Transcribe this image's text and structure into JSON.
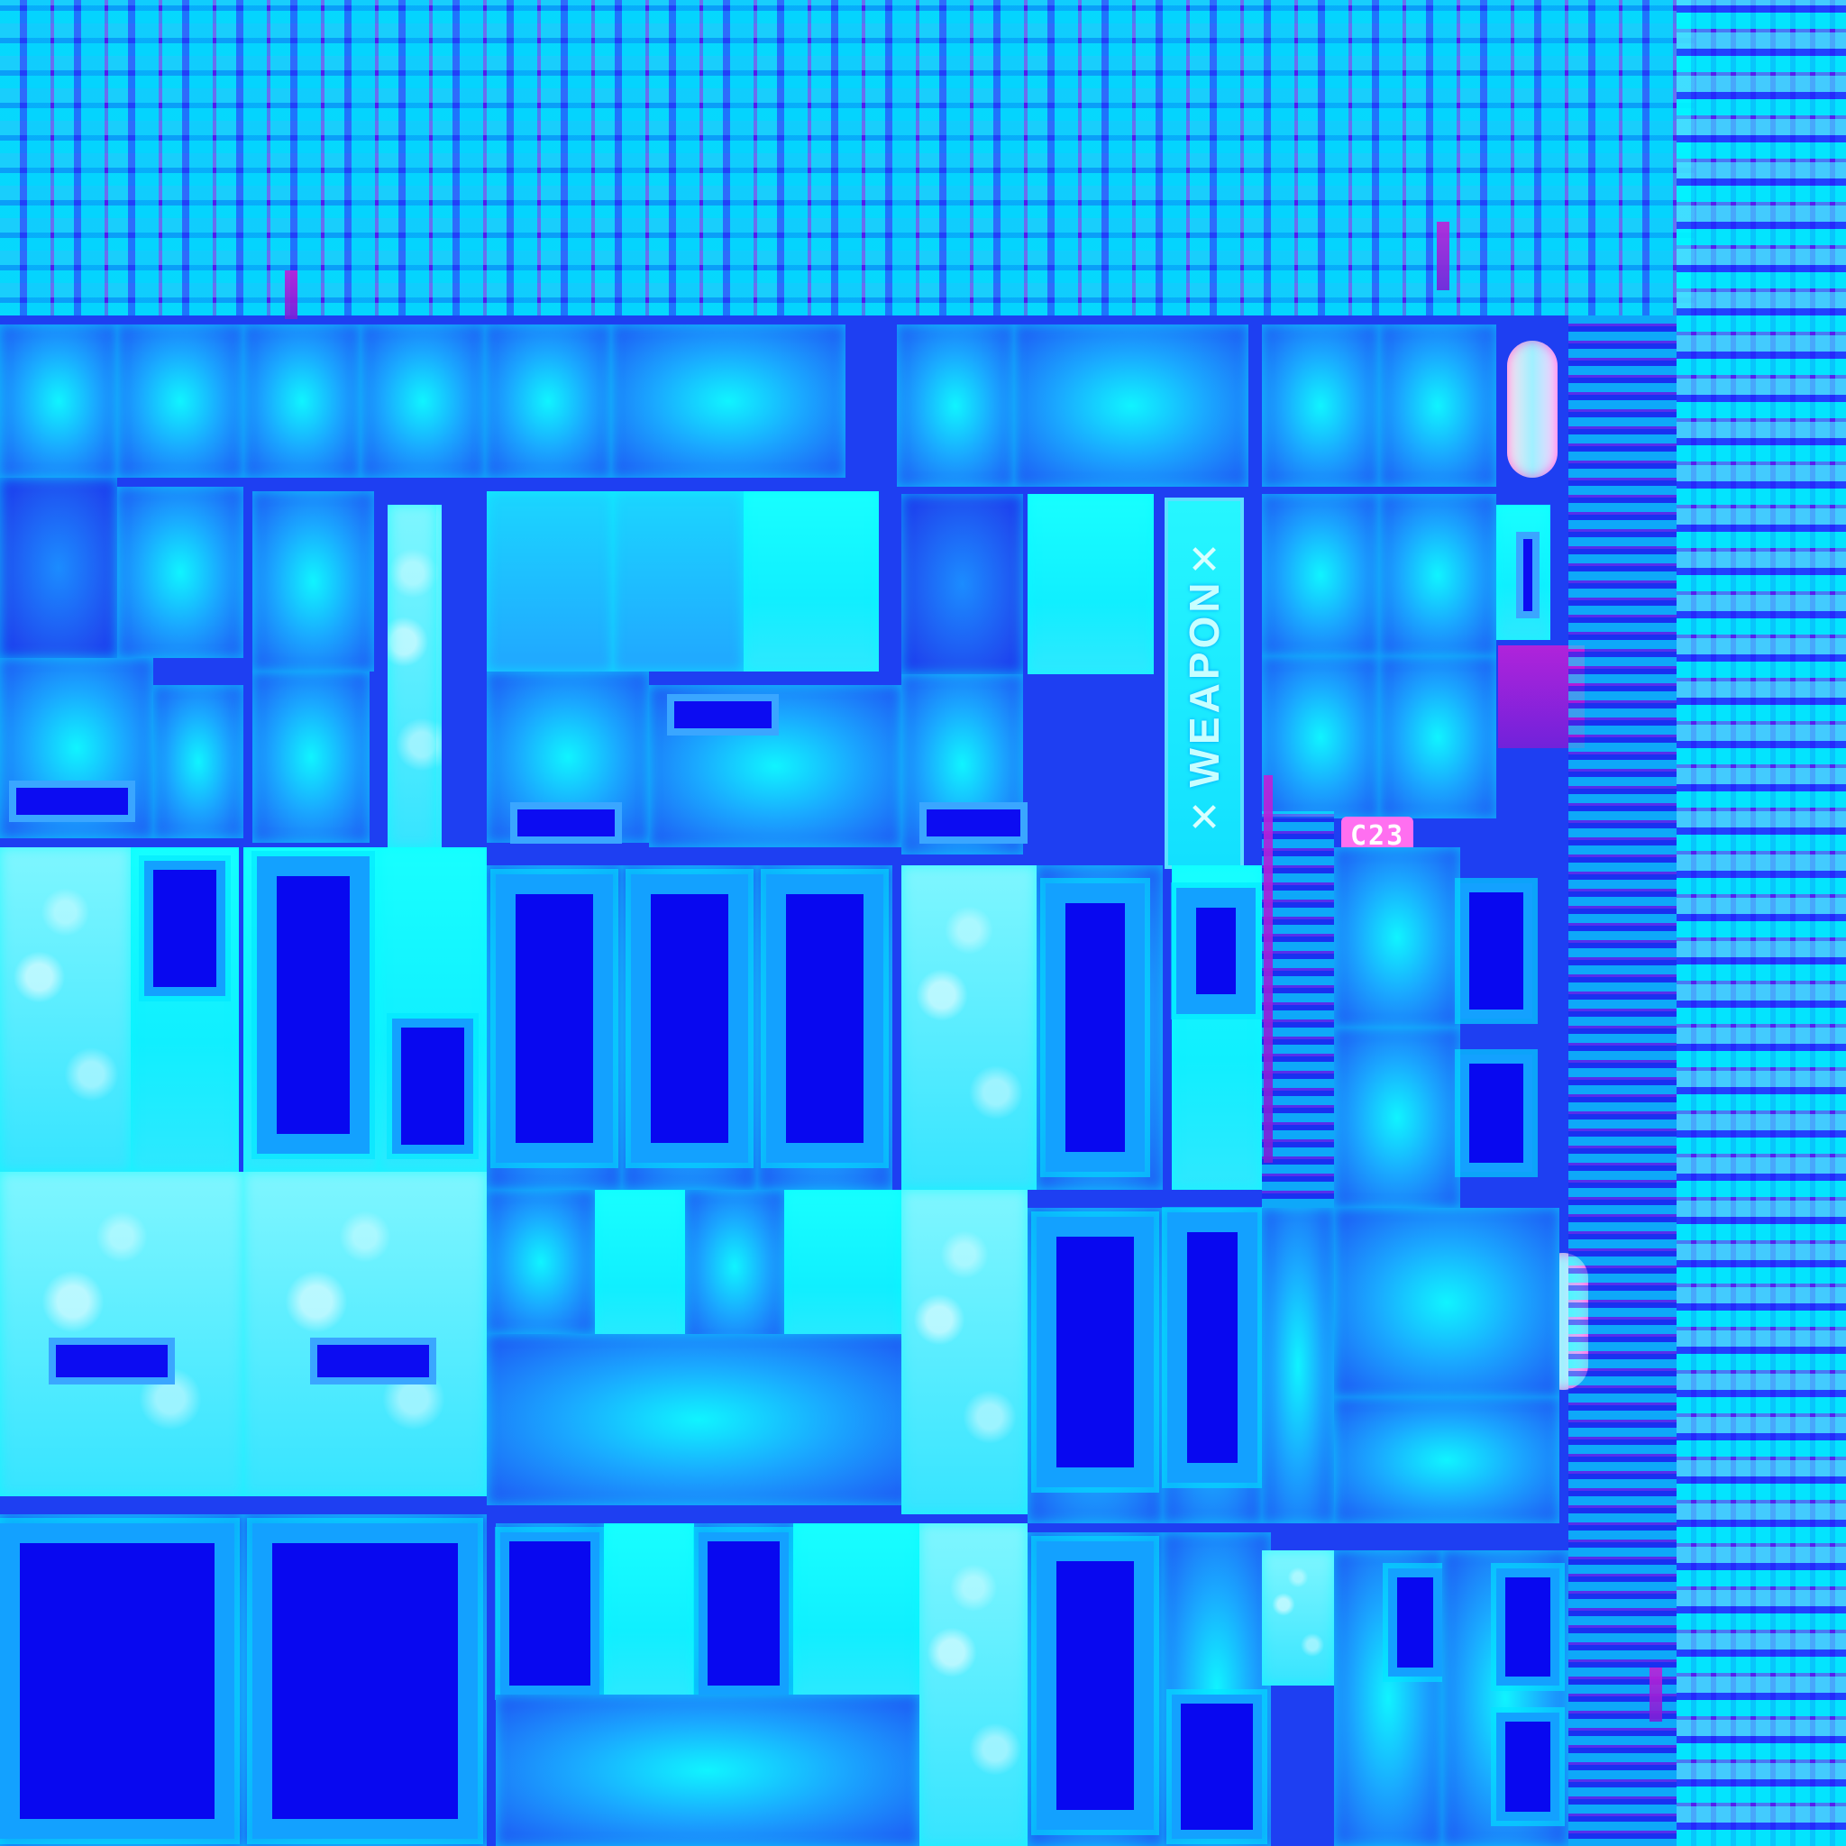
{
  "texture": {
    "labels": {
      "weapon": "WEAPON",
      "mark": "✕",
      "code": "C23"
    },
    "colors": {
      "base_blue": "#1e3ff2",
      "deep_blue": "#0808f0",
      "cyan": "#10f4ff",
      "sky": "#1aa8ff",
      "magenta": "#c020d8",
      "pink": "#ff6ff0"
    }
  }
}
